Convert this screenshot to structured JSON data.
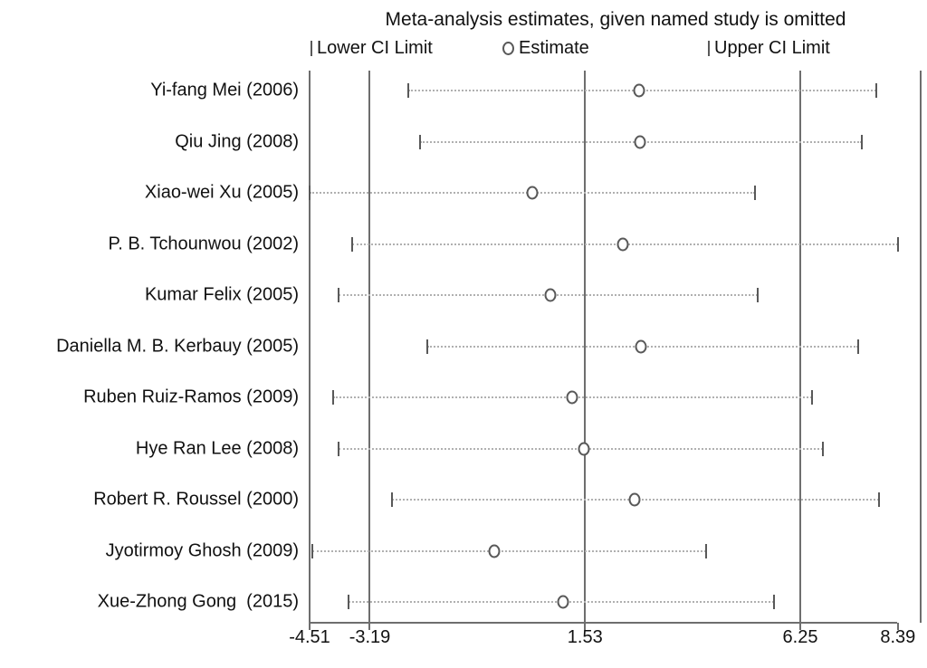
{
  "title": "Meta-analysis estimates, given named study is omitted",
  "legend": {
    "lower_label": "Lower CI Limit",
    "estimate_label": "Estimate",
    "upper_label": "Upper CI Limit"
  },
  "chart_data": {
    "type": "scatter",
    "subtype": "leave-one-out sensitivity (forest-style) meta-analysis plot",
    "title": "Meta-analysis estimates, given named study is omitted",
    "studies": [
      "Yi-fang Mei (2006)",
      "Qiu Jing (2008)",
      "Xiao-wei Xu (2005)",
      "P. B. Tchounwou (2002)",
      "Kumar Felix (2005)",
      "Daniella M. B. Kerbauy (2005)",
      "Ruben Ruiz-Ramos (2009)",
      "Hye Ran Lee (2008)",
      "Robert R. Roussel (2000)",
      "Jyotirmoy Ghosh (2009)",
      "Xue-Zhong Gong  (2015)"
    ],
    "series": [
      {
        "name": "Lower CI Limit",
        "values": [
          -2.35,
          -2.09,
          -4.51,
          -3.57,
          -3.88,
          -1.93,
          -3.99,
          -3.87,
          -2.7,
          -4.45,
          -3.66
        ]
      },
      {
        "name": "Estimate",
        "values": [
          2.72,
          2.74,
          0.37,
          2.35,
          0.77,
          2.75,
          1.25,
          1.51,
          2.61,
          -0.47,
          1.05
        ]
      },
      {
        "name": "Upper CI Limit",
        "values": [
          7.91,
          7.6,
          5.26,
          8.39,
          5.31,
          7.52,
          6.51,
          6.74,
          7.97,
          4.19,
          5.67
        ]
      }
    ],
    "x_ticks": [
      -4.51,
      -3.19,
      1.53,
      6.25,
      8.39
    ],
    "x_tick_labels": [
      "-4.51",
      "-3.19",
      "1.53",
      "6.25",
      "8.39"
    ],
    "reference_lines": [
      -3.19,
      1.53,
      6.25
    ],
    "xlim": [
      -4.51,
      8.89
    ],
    "grid": "vertical reference lines only",
    "legend_position": "top",
    "colors": {
      "marker": "#595959",
      "ci_line": "#b0b0b0",
      "reference_line": "#6e6e6e",
      "axis": "#6e6e6e",
      "text": "#111111",
      "background": "#ffffff"
    }
  }
}
